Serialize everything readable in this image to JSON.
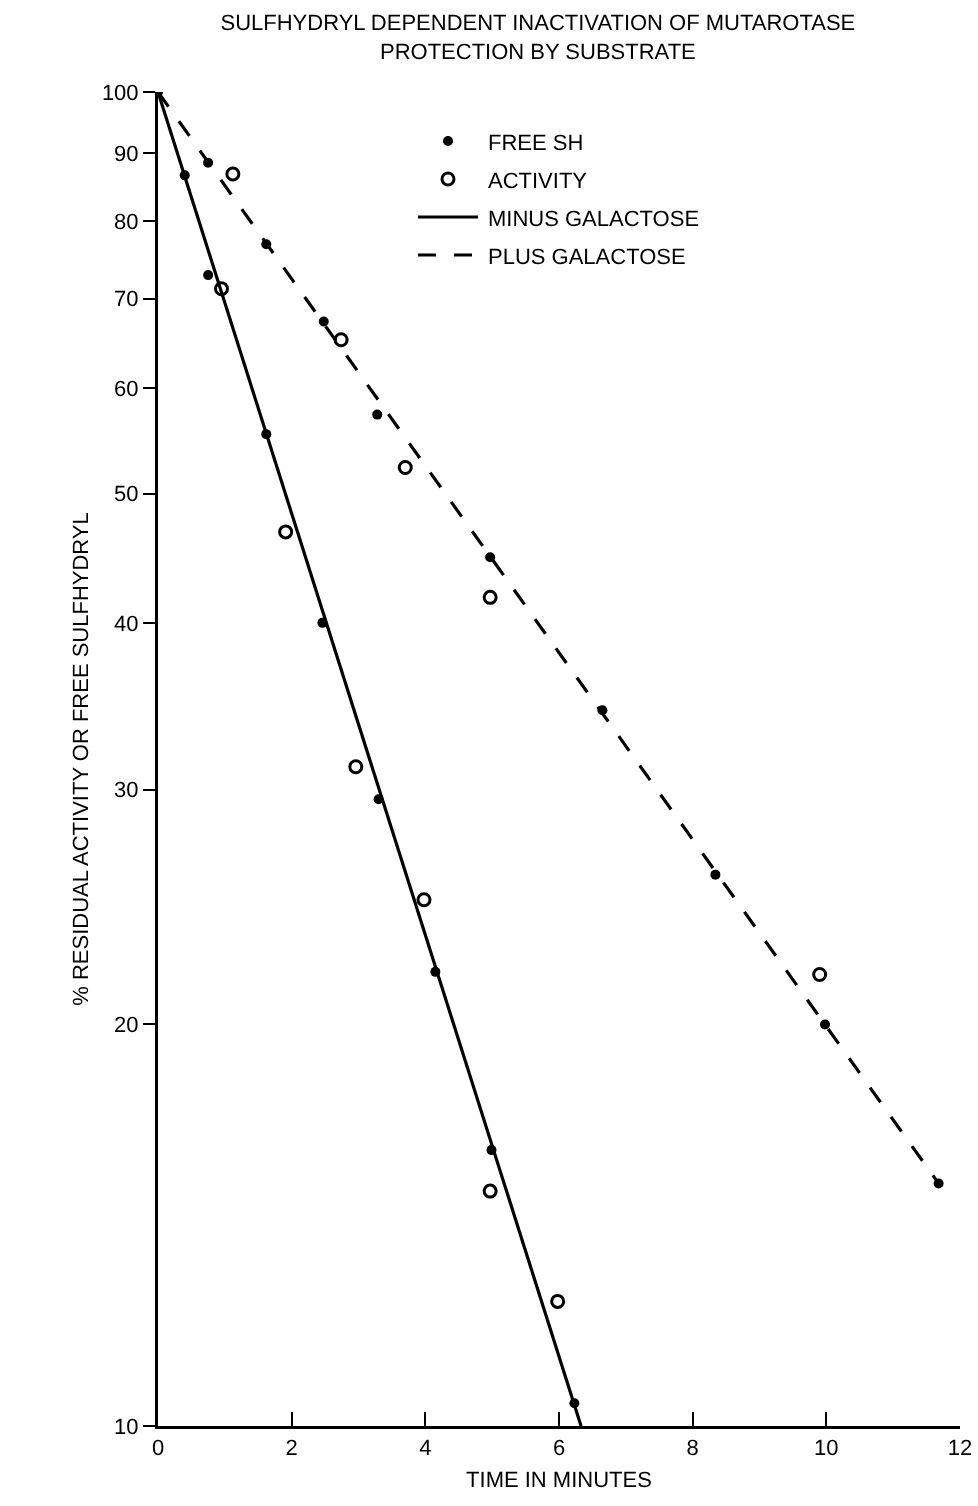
{
  "chart_data": {
    "type": "scatter",
    "title": "SULFHYDRYL DEPENDENT INACTIVATION OF MUTAROTASE\nPROTECTION BY SUBSTRATE",
    "xlabel": "TIME IN MINUTES",
    "ylabel": "% RESIDUAL ACTIVITY OR FREE SULFHYDRYL",
    "series": [
      {
        "name": "FREE SH",
        "marker": "circle",
        "color": "#000000",
        "x": [
          0,
          0.4,
          0.75,
          0.75,
          1.62,
          1.62,
          2.46,
          2.48,
          3.28,
          3.3,
          4.15,
          4.97,
          4.99,
          6.23,
          6.65,
          8.34,
          9.98,
          11.68
        ],
        "values": [
          100,
          86.6,
          72.9,
          88.5,
          76.9,
          55.4,
          40,
          67.3,
          57.3,
          29.5,
          21.9,
          44.8,
          16.1,
          10.4,
          34.4,
          25.9,
          20,
          15.2
        ]
      },
      {
        "name": "ACTIVITY",
        "marker": "circle",
        "color": "#000000",
        "x": [
          0.95,
          1.12,
          1.91,
          2.74,
          2.96,
          3.7,
          3.98,
          4.97,
          4.97,
          5.98,
          9.9
        ],
        "values": [
          71.2,
          86.8,
          46.8,
          65.2,
          31.2,
          52.3,
          24.8,
          41.8,
          15,
          12.4,
          21.8
        ]
      },
      {
        "name": "MINUS GALACTOSE",
        "type": "line",
        "line_style": "solid",
        "color": "#000000",
        "x": [
          0,
          6.33
        ],
        "values": [
          100,
          10
        ]
      },
      {
        "name": "PLUS GALACTOSE",
        "type": "line",
        "line_style": "dashed",
        "color": "#000000",
        "x": [
          0,
          11.68
        ],
        "values": [
          100,
          15.2
        ]
      }
    ],
    "xlim": [
      0,
      12
    ],
    "xticks": [
      0,
      2,
      4,
      6,
      8,
      10,
      12
    ],
    "ylim": [
      10,
      100
    ],
    "yticks": [
      10,
      20,
      30,
      40,
      50,
      60,
      70,
      80,
      90,
      100
    ],
    "log": "y",
    "grid": false,
    "legend": "top"
  }
}
